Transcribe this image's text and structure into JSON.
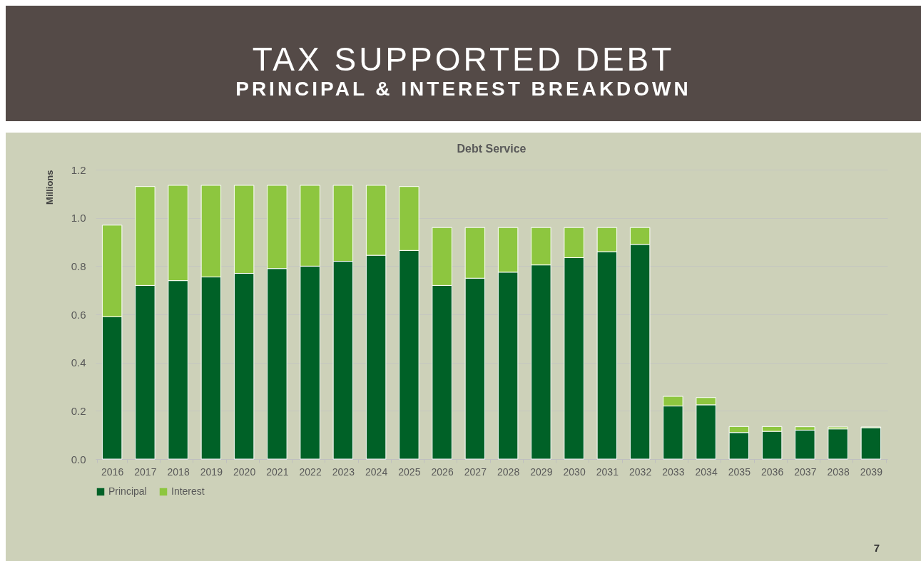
{
  "chart_data": {
    "type": "bar",
    "title": "Debt Service",
    "ylabel": "Millions",
    "annotations": [
      "TAX SUPPORTED DEBT",
      "PRINCIPAL & INTEREST BREAKDOWN",
      "7"
    ],
    "categories": [
      "2016",
      "2017",
      "2018",
      "2019",
      "2020",
      "2021",
      "2022",
      "2023",
      "2024",
      "2025",
      "2026",
      "2027",
      "2028",
      "2029",
      "2030",
      "2031",
      "2032",
      "2033",
      "2034",
      "2035",
      "2036",
      "2037",
      "2038",
      "2039"
    ],
    "stacked": true,
    "series": [
      {
        "name": "Principal",
        "color": "#006127",
        "values": [
          0.59,
          0.72,
          0.74,
          0.755,
          0.77,
          0.79,
          0.8,
          0.82,
          0.845,
          0.865,
          0.72,
          0.75,
          0.775,
          0.805,
          0.835,
          0.86,
          0.89,
          0.22,
          0.225,
          0.11,
          0.115,
          0.12,
          0.125,
          0.13
        ]
      },
      {
        "name": "Interest",
        "color": "#8dc63f",
        "values": [
          0.38,
          0.41,
          0.395,
          0.38,
          0.365,
          0.345,
          0.335,
          0.315,
          0.29,
          0.265,
          0.24,
          0.21,
          0.185,
          0.155,
          0.125,
          0.1,
          0.07,
          0.04,
          0.03,
          0.025,
          0.02,
          0.014,
          0.008,
          0.003
        ]
      }
    ],
    "ylim": [
      0,
      1.2
    ],
    "yticks": [
      {
        "value": 0,
        "label": "0.0"
      },
      0.2,
      0.4,
      0.6,
      0.8,
      {
        "value": 1,
        "label": "1.0"
      },
      1.2
    ],
    "grid": "y",
    "legend": "bottom"
  }
}
